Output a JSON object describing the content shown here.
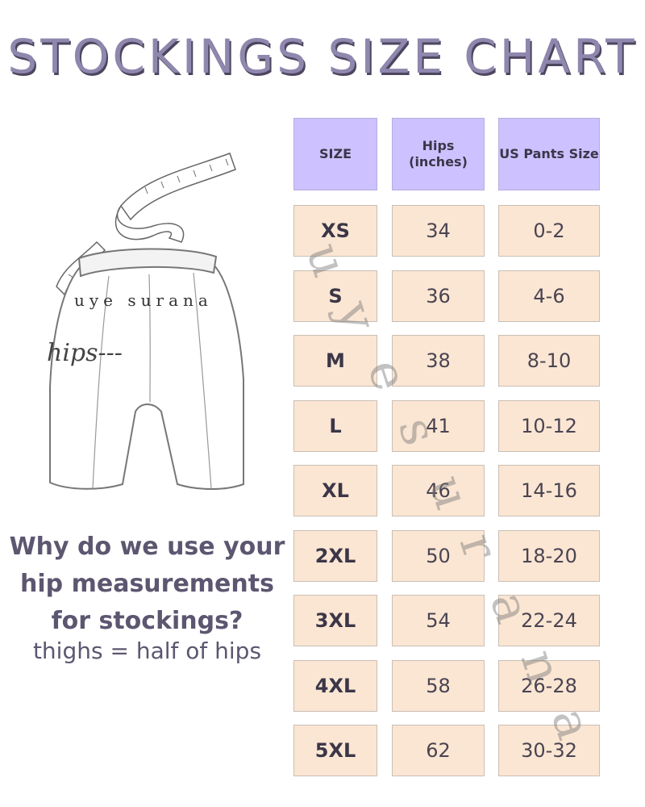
{
  "title": "STOCKINGS SIZE CHART",
  "illustration": {
    "brand": "uye surana",
    "hips_label": "hips---"
  },
  "info": {
    "question_lines": [
      "Why do we use your",
      "hip measurements",
      "for stockings?"
    ],
    "answer": "thighs = half of hips"
  },
  "table": {
    "headers": [
      "SIZE",
      "Hips (inches)",
      "US Pants Size"
    ],
    "rows": [
      {
        "size": "XS",
        "hips": "34",
        "pants": "0-2"
      },
      {
        "size": "S",
        "hips": "36",
        "pants": "4-6"
      },
      {
        "size": "M",
        "hips": "38",
        "pants": "8-10"
      },
      {
        "size": "L",
        "hips": "41",
        "pants": "10-12"
      },
      {
        "size": "XL",
        "hips": "46",
        "pants": "14-16"
      },
      {
        "size": "2XL",
        "hips": "50",
        "pants": "18-20"
      },
      {
        "size": "3XL",
        "hips": "54",
        "pants": "22-24"
      },
      {
        "size": "4XL",
        "hips": "58",
        "pants": "26-28"
      },
      {
        "size": "5XL",
        "hips": "62",
        "pants": "30-32"
      }
    ]
  },
  "watermark": "uye surana",
  "colors": {
    "header_bg": "#cdc2ff",
    "cell_bg": "#fbe6d3",
    "text_purple": "#5d5670"
  }
}
